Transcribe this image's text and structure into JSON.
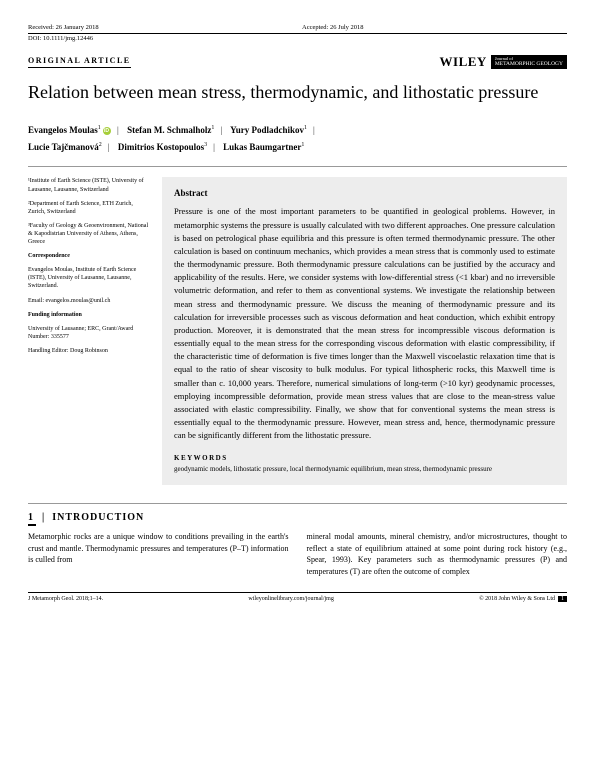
{
  "meta": {
    "received": "Received: 26 January 2018",
    "accepted": "Accepted: 26 July 2018",
    "doi": "DOI: 10.1111/jmg.12446"
  },
  "header": {
    "article_type": "ORIGINAL ARTICLE",
    "publisher": "WILEY",
    "journal_line1": "Journal of",
    "journal_line2": "METAMORPHIC GEOLOGY"
  },
  "title": "Relation between mean stress, thermodynamic, and lithostatic pressure",
  "authors": [
    {
      "name": "Evangelos Moulas",
      "aff": "1",
      "orcid": true
    },
    {
      "name": "Stefan M. Schmalholz",
      "aff": "1"
    },
    {
      "name": "Yury Podladchikov",
      "aff": "1"
    },
    {
      "name": "Lucie Tajčmanová",
      "aff": "2"
    },
    {
      "name": "Dimitrios Kostopoulos",
      "aff": "3"
    },
    {
      "name": "Lukas Baumgartner",
      "aff": "1"
    }
  ],
  "affiliations": {
    "a1": "¹Institute of Earth Science (ISTE), University of Lausanne, Lausanne, Switzerland",
    "a2": "²Department of Earth Science, ETH Zurich, Zurich, Switzerland",
    "a3": "³Faculty of Geology & Geoenvironment, National & Kapodistrian University of Athens, Athens, Greece",
    "corr_head": "Correspondence",
    "corr": "Evangelos Moulas, Institute of Earth Science (ISTE), University of Lausanne, Lausanne, Switzerland.",
    "email": "Email: evangelos.moulas@unil.ch",
    "fund_head": "Funding information",
    "fund": "University of Lausanne; ERC, Grant/Award Number: 335577",
    "editor": "Handling Editor: Doug Robinson"
  },
  "abstract": {
    "heading": "Abstract",
    "text": "Pressure is one of the most important parameters to be quantified in geological problems. However, in metamorphic systems the pressure is usually calculated with two different approaches. One pressure calculation is based on petrological phase equilibria and this pressure is often termed thermodynamic pressure. The other calculation is based on continuum mechanics, which provides a mean stress that is commonly used to estimate the thermodynamic pressure. Both thermodynamic pressure calculations can be justified by the accuracy and applicability of the results. Here, we consider systems with low-differential stress (<1 kbar) and no irreversible volumetric deformation, and refer to them as conventional systems. We investigate the relationship between mean stress and thermodynamic pressure. We discuss the meaning of thermodynamic pressure and its calculation for irreversible processes such as viscous deformation and heat conduction, which exhibit entropy production. Moreover, it is demonstrated that the mean stress for incompressible viscous deformation is essentially equal to the mean stress for the corresponding viscous deformation with elastic compressibility, if the characteristic time of deformation is five times longer than the Maxwell viscoelastic relaxation time that is equal to the ratio of shear viscosity to bulk modulus. For typical lithospheric rocks, this Maxwell time is smaller than c. 10,000 years. Therefore, numerical simulations of long-term (>10 kyr) geodynamic processes, employing incompressible deformation, provide mean stress values that are close to the mean-stress value associated with elastic compressibility. Finally, we show that for conventional systems the mean stress is essentially equal to the thermodynamic pressure. However, mean stress and, hence, thermodynamic pressure can be significantly different from the lithostatic pressure.",
    "kw_head": "KEYWORDS",
    "keywords": "geodynamic models, lithostatic pressure, local thermodynamic equilibrium, mean stress, thermodynamic pressure"
  },
  "section": {
    "num": "1",
    "divider": "|",
    "title": "INTRODUCTION"
  },
  "body": {
    "col1": "Metamorphic rocks are a unique window to conditions prevailing in the earth's crust and mantle. Thermodynamic pressures and temperatures (P–T) information is culled from",
    "col2": "mineral modal amounts, mineral chemistry, and/or microstructures, thought to reflect a state of equilibrium attained at some point during rock history (e.g., Spear, 1993). Key parameters such as thermodynamic pressures (P) and temperatures (T) are often the outcome of complex"
  },
  "footer": {
    "left": "J Metamorph Geol. 2018;1–14.",
    "center": "wileyonlinelibrary.com/journal/jmg",
    "right": "© 2018 John Wiley & Sons Ltd",
    "page": "1"
  }
}
